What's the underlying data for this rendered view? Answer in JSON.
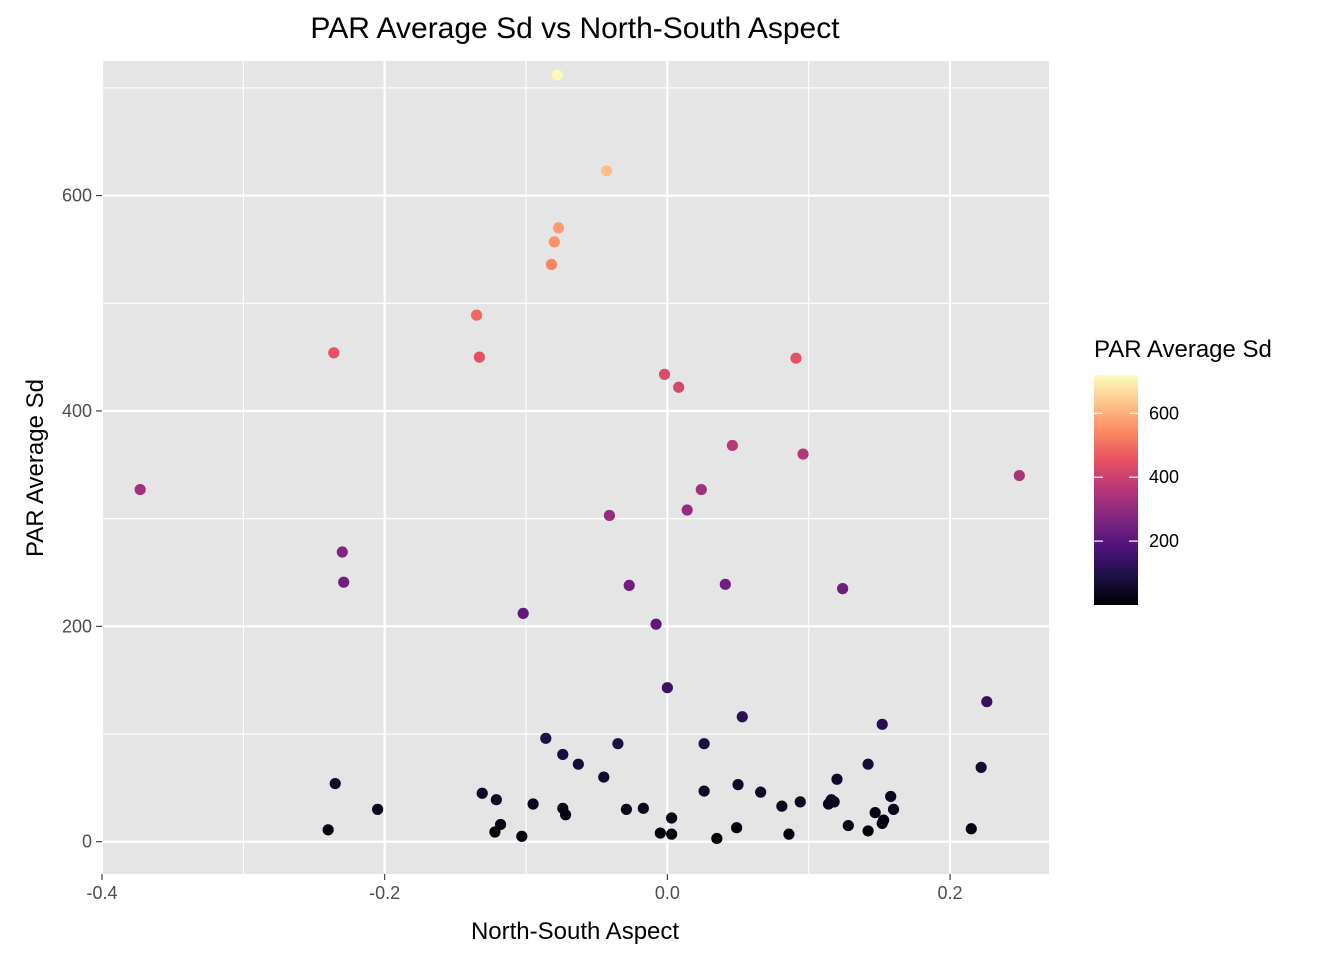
{
  "chart_data": {
    "type": "scatter",
    "title": "PAR Average Sd vs North-South Aspect",
    "xlabel": "North-South Aspect",
    "ylabel": "PAR Average Sd",
    "xlim": [
      -0.4,
      0.27
    ],
    "ylim": [
      -30,
      725
    ],
    "x_ticks": [
      -0.4,
      -0.2,
      0.0,
      0.2
    ],
    "x_tick_labels": [
      "-0.4",
      "-0.2",
      "0.0",
      "0.2"
    ],
    "x_minor_ticks": [
      -0.3,
      -0.1,
      0.1
    ],
    "y_ticks": [
      0,
      200,
      400,
      600
    ],
    "y_tick_labels": [
      "0",
      "200",
      "400",
      "600"
    ],
    "y_minor_ticks": [
      100,
      300,
      500,
      700
    ],
    "grid": true,
    "panel_background": "#e5e5e5",
    "grid_color": "#ffffff",
    "color_scale": "magma",
    "color_range": [
      0,
      720
    ],
    "legend": {
      "title": "PAR Average Sd",
      "position": "right",
      "ticks": [
        200,
        400,
        600
      ],
      "tick_labels": [
        "200",
        "400",
        "600"
      ]
    },
    "points": [
      {
        "x": -0.078,
        "y": 712
      },
      {
        "x": -0.043,
        "y": 623
      },
      {
        "x": -0.077,
        "y": 570
      },
      {
        "x": -0.08,
        "y": 557
      },
      {
        "x": -0.082,
        "y": 536
      },
      {
        "x": -0.135,
        "y": 489
      },
      {
        "x": -0.236,
        "y": 454
      },
      {
        "x": -0.133,
        "y": 450
      },
      {
        "x": 0.091,
        "y": 449
      },
      {
        "x": -0.002,
        "y": 434
      },
      {
        "x": 0.008,
        "y": 422
      },
      {
        "x": 0.046,
        "y": 368
      },
      {
        "x": 0.096,
        "y": 360
      },
      {
        "x": 0.249,
        "y": 340
      },
      {
        "x": -0.373,
        "y": 327
      },
      {
        "x": 0.024,
        "y": 327
      },
      {
        "x": 0.014,
        "y": 308
      },
      {
        "x": -0.041,
        "y": 303
      },
      {
        "x": -0.23,
        "y": 269
      },
      {
        "x": -0.229,
        "y": 241
      },
      {
        "x": 0.041,
        "y": 239
      },
      {
        "x": -0.027,
        "y": 238
      },
      {
        "x": 0.124,
        "y": 235
      },
      {
        "x": -0.102,
        "y": 212
      },
      {
        "x": -0.008,
        "y": 202
      },
      {
        "x": 0.0,
        "y": 143
      },
      {
        "x": 0.226,
        "y": 130
      },
      {
        "x": 0.053,
        "y": 116
      },
      {
        "x": 0.152,
        "y": 109
      },
      {
        "x": -0.086,
        "y": 96
      },
      {
        "x": -0.035,
        "y": 91
      },
      {
        "x": 0.026,
        "y": 91
      },
      {
        "x": -0.074,
        "y": 81
      },
      {
        "x": -0.063,
        "y": 72
      },
      {
        "x": 0.142,
        "y": 72
      },
      {
        "x": 0.222,
        "y": 69
      },
      {
        "x": -0.045,
        "y": 60
      },
      {
        "x": 0.12,
        "y": 58
      },
      {
        "x": -0.235,
        "y": 54
      },
      {
        "x": 0.05,
        "y": 53
      },
      {
        "x": 0.026,
        "y": 47
      },
      {
        "x": 0.066,
        "y": 46
      },
      {
        "x": -0.131,
        "y": 45
      },
      {
        "x": 0.158,
        "y": 42
      },
      {
        "x": -0.121,
        "y": 39
      },
      {
        "x": 0.116,
        "y": 39
      },
      {
        "x": 0.094,
        "y": 37
      },
      {
        "x": 0.118,
        "y": 37
      },
      {
        "x": -0.095,
        "y": 35
      },
      {
        "x": 0.114,
        "y": 35
      },
      {
        "x": 0.081,
        "y": 33
      },
      {
        "x": -0.205,
        "y": 30
      },
      {
        "x": -0.074,
        "y": 31
      },
      {
        "x": -0.017,
        "y": 31
      },
      {
        "x": -0.029,
        "y": 30
      },
      {
        "x": 0.16,
        "y": 30
      },
      {
        "x": 0.147,
        "y": 27
      },
      {
        "x": -0.072,
        "y": 25
      },
      {
        "x": 0.003,
        "y": 22
      },
      {
        "x": 0.153,
        "y": 20
      },
      {
        "x": -0.118,
        "y": 16
      },
      {
        "x": 0.152,
        "y": 17
      },
      {
        "x": 0.128,
        "y": 15
      },
      {
        "x": 0.049,
        "y": 13
      },
      {
        "x": -0.24,
        "y": 11
      },
      {
        "x": 0.215,
        "y": 12
      },
      {
        "x": -0.122,
        "y": 9
      },
      {
        "x": 0.142,
        "y": 10
      },
      {
        "x": -0.005,
        "y": 8
      },
      {
        "x": 0.003,
        "y": 7
      },
      {
        "x": 0.086,
        "y": 7
      },
      {
        "x": -0.103,
        "y": 5
      },
      {
        "x": 0.035,
        "y": 3
      }
    ]
  }
}
